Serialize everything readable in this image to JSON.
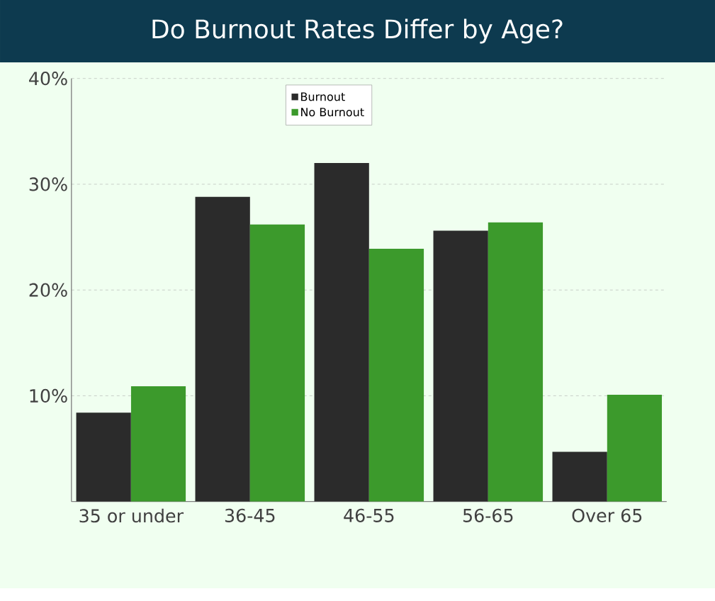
{
  "chart_data": {
    "type": "bar",
    "title": "Do Burnout Rates Differ by Age?",
    "categories": [
      "35 or under",
      "36-45",
      "46-55",
      "56-65",
      "Over 65"
    ],
    "series": [
      {
        "name": "Burnout",
        "color": "#2b2b2b",
        "values": [
          8.4,
          28.8,
          32.0,
          25.6,
          4.7
        ]
      },
      {
        "name": "No Burnout",
        "color": "#3c9a2c",
        "values": [
          10.9,
          26.2,
          23.9,
          26.4,
          10.1
        ]
      }
    ],
    "ylim": [
      0,
      40
    ],
    "yticks": [
      {
        "value": 10,
        "label": "10%"
      },
      {
        "value": 20,
        "label": "20%"
      },
      {
        "value": 30,
        "label": "30%"
      },
      {
        "value": 40,
        "label": "40%"
      }
    ],
    "grid": "y",
    "legend": "top"
  }
}
